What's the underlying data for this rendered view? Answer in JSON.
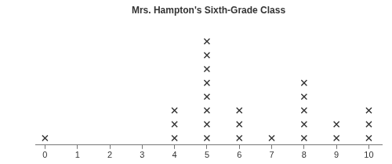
{
  "chart_data": {
    "type": "dot",
    "title": "Mrs. Hampton's Sixth-Grade Class",
    "x": [
      0,
      1,
      2,
      3,
      4,
      5,
      6,
      7,
      8,
      9,
      10
    ],
    "values": [
      1,
      0,
      0,
      0,
      3,
      8,
      3,
      1,
      5,
      2,
      3
    ],
    "xlim": [
      -0.3,
      10.4
    ],
    "xticks": [
      0,
      1,
      2,
      3,
      4,
      5,
      6,
      7,
      8,
      9,
      10
    ],
    "marker": "x",
    "color": "#333333",
    "tick_labels": "x",
    "grid": false
  }
}
